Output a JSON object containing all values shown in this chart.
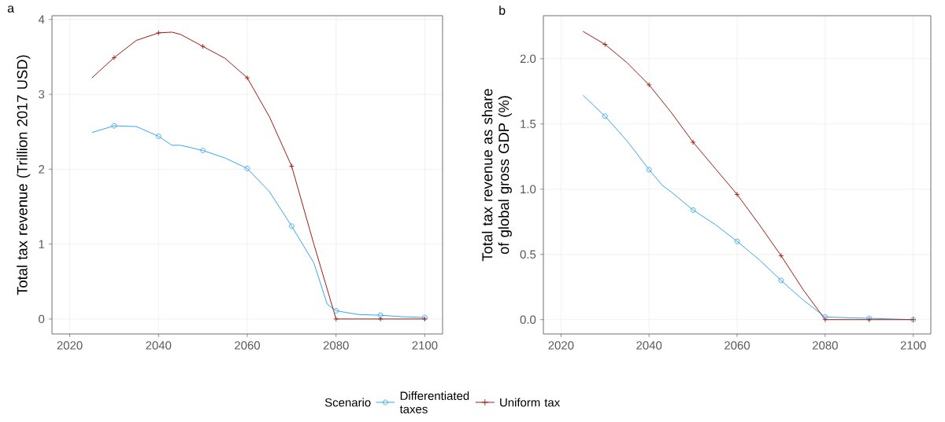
{
  "chart_data": [
    {
      "type": "line",
      "ylabel": "Total tax revenue (Trillion 2017 USD)",
      "annotations": [
        "a"
      ],
      "legend_title": "Scenario",
      "legend": "bottom",
      "grid": true,
      "xlim": [
        2016,
        2104
      ],
      "ylim": [
        -0.2,
        4.05
      ],
      "xticks": [
        2020,
        2040,
        2060,
        2080,
        2100
      ],
      "yticks": [
        0,
        1,
        2,
        3,
        4
      ],
      "series": [
        {
          "name": "Differentiated taxes",
          "type": "line",
          "color": "#35a7f0",
          "x": [
            2025,
            2030,
            2035,
            2040,
            2043,
            2045,
            2050,
            2055,
            2060,
            2065,
            2070,
            2075,
            2078,
            2080,
            2085,
            2090,
            2095,
            2100
          ],
          "values": [
            2.49,
            2.58,
            2.57,
            2.44,
            2.32,
            2.32,
            2.25,
            2.15,
            2.01,
            1.7,
            1.24,
            0.75,
            0.2,
            0.11,
            0.06,
            0.05,
            0.03,
            0.02
          ]
        },
        {
          "name": "Uniform tax",
          "type": "line",
          "color": "#a11a0f",
          "x": [
            2025,
            2030,
            2035,
            2040,
            2043,
            2045,
            2050,
            2055,
            2060,
            2065,
            2070,
            2075,
            2080,
            2090,
            2100
          ],
          "values": [
            3.22,
            3.49,
            3.72,
            3.82,
            3.83,
            3.8,
            3.64,
            3.48,
            3.22,
            2.7,
            2.04,
            1.0,
            0,
            0,
            0
          ]
        },
        {
          "type": "scatter",
          "marker": "circle",
          "color": "#35a7f0",
          "x": [
            2030,
            2040,
            2050,
            2060,
            2070,
            2080,
            2090,
            2100
          ],
          "values": [
            2.58,
            2.44,
            2.25,
            2.01,
            1.24,
            0.11,
            0.05,
            0.02
          ]
        },
        {
          "type": "scatter",
          "marker": "cross",
          "color": "#a11a0f",
          "x": [
            2030,
            2040,
            2050,
            2060,
            2070,
            2080,
            2090,
            2100
          ],
          "values": [
            3.49,
            3.82,
            3.64,
            3.22,
            2.04,
            0,
            0,
            0
          ]
        }
      ]
    },
    {
      "type": "line",
      "ylabel": "Total tax revenue as share of global gross GDP (%)",
      "annotations": [
        "b"
      ],
      "grid": true,
      "xlim": [
        2016,
        2104
      ],
      "ylim": [
        -0.11,
        2.33
      ],
      "xticks": [
        2020,
        2040,
        2060,
        2080,
        2100
      ],
      "yticks": [
        {
          "value": 0,
          "label": "0.0"
        },
        {
          "value": 0.5,
          "label": "0.5"
        },
        {
          "value": 1,
          "label": "1.0"
        },
        {
          "value": 1.5,
          "label": "1.5"
        },
        {
          "value": 2,
          "label": "2.0"
        }
      ],
      "series": [
        {
          "type": "line",
          "color": "#35a7f0",
          "x": [
            2025,
            2030,
            2035,
            2040,
            2043,
            2045,
            2050,
            2055,
            2060,
            2065,
            2070,
            2075,
            2080,
            2090,
            2100
          ],
          "values": [
            1.72,
            1.56,
            1.37,
            1.15,
            1.03,
            0.98,
            0.84,
            0.73,
            0.6,
            0.46,
            0.3,
            0.15,
            0.02,
            0.01,
            0
          ]
        },
        {
          "type": "line",
          "color": "#a11a0f",
          "x": [
            2025,
            2030,
            2035,
            2040,
            2045,
            2050,
            2055,
            2060,
            2065,
            2070,
            2075,
            2080,
            2090,
            2100
          ],
          "values": [
            2.21,
            2.11,
            1.97,
            1.8,
            1.59,
            1.36,
            1.16,
            0.96,
            0.73,
            0.49,
            0.23,
            0,
            0,
            0
          ]
        },
        {
          "type": "scatter",
          "marker": "circle",
          "color": "#35a7f0",
          "x": [
            2030,
            2040,
            2050,
            2060,
            2070,
            2080,
            2090,
            2100
          ],
          "values": [
            1.56,
            1.15,
            0.84,
            0.6,
            0.3,
            0.02,
            0.01,
            0
          ]
        },
        {
          "type": "scatter",
          "marker": "cross",
          "color": "#a11a0f",
          "x": [
            2030,
            2040,
            2050,
            2060,
            2070,
            2080,
            2090,
            2100
          ],
          "values": [
            2.11,
            1.8,
            1.36,
            0.96,
            0.49,
            0,
            0,
            0
          ]
        }
      ]
    }
  ]
}
